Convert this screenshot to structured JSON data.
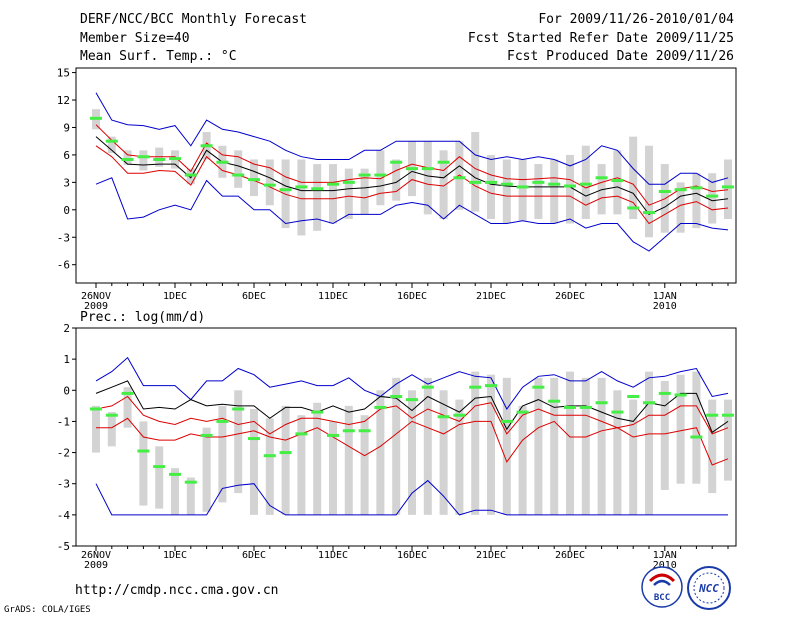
{
  "header": {
    "title": "DERF/NCC/BCC Monthly Forecast",
    "member_size": "Member Size=40",
    "variable": "Mean Surf. Temp.: °C",
    "forecast_range": "For 2009/11/26-2010/01/04",
    "started_refer": "Fcst Started Refer Date 2009/11/25",
    "produced": "Fcst Produced Date 2009/11/26"
  },
  "footer": {
    "url": "http://cmdp.ncc.cma.gov.cn",
    "credit": "GrADS: COLA/IGES"
  },
  "logos": {
    "bcc": "BCC",
    "ncc": "NCC"
  },
  "colors": {
    "box": "#d3d3d3",
    "median": "#44ee44",
    "mean": "#000000",
    "spread": "#dd0000",
    "extreme": "#0000cc"
  },
  "chart_data": [
    {
      "type": "box",
      "title": "Mean Surf. Temp.: °C",
      "xlabel": "",
      "ylabel": "°C",
      "ylim": [
        -8,
        15.5
      ],
      "yticks": [
        -6,
        -3,
        0,
        3,
        6,
        9,
        12,
        15
      ],
      "xticks": [
        {
          "day": 0,
          "label": "26NOV",
          "sub": "2009"
        },
        {
          "day": 5,
          "label": "1DEC"
        },
        {
          "day": 10,
          "label": "6DEC"
        },
        {
          "day": 15,
          "label": "11DEC"
        },
        {
          "day": 20,
          "label": "16DEC"
        },
        {
          "day": 25,
          "label": "21DEC"
        },
        {
          "day": 30,
          "label": "26DEC"
        },
        {
          "day": 36,
          "label": "1JAN",
          "sub": "2010"
        }
      ],
      "box_low": [
        8.8,
        6.2,
        4.9,
        4.3,
        4.7,
        4.5,
        2.8,
        5.5,
        3.5,
        2.4,
        1.5,
        0.5,
        -2.0,
        -2.8,
        -2.3,
        -1.5,
        -1.0,
        -0.5,
        0.5,
        1.0,
        1.5,
        -0.5,
        -1.0,
        0.0,
        -0.2,
        -1.0,
        -1.5,
        -1.2,
        -1.0,
        -1.5,
        -1.5,
        -1.0,
        -0.5,
        -0.5,
        -1.0,
        -3.0,
        -2.5,
        -2.5,
        -2.0,
        -1.5,
        -1.0
      ],
      "box_high": [
        11.0,
        8.0,
        6.5,
        6.5,
        6.8,
        6.5,
        4.5,
        8.5,
        7.0,
        6.5,
        5.5,
        5.5,
        5.5,
        5.5,
        5.0,
        5.0,
        4.5,
        4.5,
        6.5,
        5.5,
        7.5,
        7.5,
        6.5,
        7.5,
        8.5,
        6.0,
        5.5,
        5.5,
        5.0,
        5.5,
        6.0,
        7.0,
        5.0,
        6.5,
        8.0,
        7.0,
        5.0,
        3.0,
        4.0,
        4.0,
        5.5
      ],
      "median": [
        10.0,
        7.5,
        5.5,
        5.8,
        5.5,
        5.6,
        3.8,
        7.0,
        5.2,
        3.8,
        3.3,
        2.7,
        2.2,
        2.5,
        2.3,
        2.8,
        3.0,
        3.8,
        3.8,
        5.2,
        4.5,
        4.5,
        5.2,
        3.5,
        3.0,
        3.0,
        2.8,
        2.5,
        3.0,
        2.8,
        2.6,
        2.8,
        3.5,
        3.2,
        0.2,
        -0.3,
        2.0,
        2.2,
        2.4,
        1.5,
        2.5
      ],
      "mean": [
        8.0,
        6.5,
        5.0,
        4.9,
        5.0,
        5.0,
        3.5,
        6.5,
        5.2,
        4.8,
        4.2,
        3.5,
        2.6,
        2.1,
        2.1,
        2.1,
        2.3,
        2.4,
        2.6,
        3.0,
        4.2,
        3.7,
        3.5,
        4.8,
        3.5,
        2.8,
        2.6,
        2.5,
        2.5,
        2.5,
        2.5,
        1.5,
        2.2,
        2.5,
        1.8,
        -0.5,
        0.3,
        1.5,
        1.8,
        1.0,
        1.2
      ],
      "upper_spread": [
        9.3,
        7.6,
        6.0,
        5.8,
        5.8,
        5.8,
        4.2,
        7.3,
        6.0,
        5.8,
        5.0,
        4.6,
        3.6,
        3.0,
        3.0,
        3.0,
        3.3,
        3.5,
        3.4,
        4.3,
        5.0,
        4.6,
        4.3,
        5.8,
        4.5,
        3.8,
        3.4,
        3.3,
        3.4,
        3.5,
        3.3,
        2.4,
        3.0,
        3.5,
        2.8,
        0.5,
        1.2,
        2.3,
        2.6,
        2.0,
        2.2
      ],
      "lower_spread": [
        7.0,
        5.8,
        4.0,
        4.0,
        4.3,
        4.2,
        2.7,
        5.8,
        4.3,
        3.8,
        3.2,
        2.5,
        1.7,
        1.2,
        1.2,
        1.2,
        1.5,
        1.3,
        1.8,
        2.0,
        3.3,
        2.8,
        2.6,
        3.8,
        2.6,
        1.8,
        1.5,
        1.5,
        1.5,
        1.5,
        1.5,
        0.5,
        1.3,
        1.5,
        0.8,
        -1.5,
        -0.5,
        0.5,
        0.9,
        0.0,
        0.2
      ],
      "max": [
        12.8,
        9.8,
        9.3,
        9.2,
        8.8,
        9.2,
        7.0,
        9.8,
        8.8,
        8.5,
        8.0,
        7.5,
        6.5,
        5.8,
        5.5,
        5.5,
        5.5,
        6.5,
        6.5,
        7.5,
        7.5,
        7.5,
        7.5,
        7.5,
        6.0,
        5.5,
        5.8,
        5.5,
        5.8,
        5.5,
        4.8,
        5.5,
        7.0,
        6.5,
        4.5,
        2.8,
        2.8,
        4.0,
        4.0,
        3.0,
        3.5
      ],
      "min": [
        2.8,
        3.5,
        -1.0,
        -0.8,
        0.0,
        0.5,
        0.0,
        3.2,
        1.5,
        1.5,
        0.0,
        0.0,
        -1.5,
        -1.2,
        -1.0,
        -1.5,
        -0.5,
        -0.5,
        -0.5,
        0.5,
        0.8,
        0.5,
        -1.0,
        0.5,
        -0.5,
        -1.5,
        -1.5,
        -1.2,
        -1.5,
        -1.5,
        -1.0,
        -2.0,
        -1.5,
        -1.5,
        -3.5,
        -4.5,
        -3.0,
        -1.5,
        -1.5,
        -2.0,
        -2.2
      ]
    },
    {
      "type": "box",
      "title": "Prec.: log(mm/d)",
      "xlabel": "",
      "ylabel": "log(mm/d)",
      "ylim": [
        -5,
        2
      ],
      "yticks": [
        -5,
        -4,
        -3,
        -2,
        -1,
        0,
        1,
        2
      ],
      "xticks": [
        {
          "day": 0,
          "label": "26NOV",
          "sub": "2009"
        },
        {
          "day": 5,
          "label": "1DEC"
        },
        {
          "day": 10,
          "label": "6DEC"
        },
        {
          "day": 15,
          "label": "11DEC"
        },
        {
          "day": 20,
          "label": "16DEC"
        },
        {
          "day": 25,
          "label": "21DEC"
        },
        {
          "day": 30,
          "label": "26DEC"
        },
        {
          "day": 36,
          "label": "1JAN",
          "sub": "2010"
        }
      ],
      "box_low": [
        -2.0,
        -1.8,
        -1.2,
        -3.7,
        -3.8,
        -4.0,
        -4.0,
        -3.9,
        -3.6,
        -3.3,
        -4.0,
        -4.0,
        -4.0,
        -4.0,
        -4.0,
        -4.0,
        -4.0,
        -4.0,
        -4.0,
        -4.0,
        -4.0,
        -4.0,
        -4.0,
        -4.0,
        -4.0,
        -4.0,
        -4.0,
        -4.0,
        -4.0,
        -4.0,
        -4.0,
        -4.0,
        -4.0,
        -4.0,
        -4.0,
        -4.0,
        -3.2,
        -3.0,
        -3.0,
        -3.3,
        -2.9
      ],
      "box_high": [
        -0.5,
        -0.7,
        0.1,
        -1.0,
        -1.8,
        -2.5,
        -2.8,
        -1.2,
        -0.5,
        0.0,
        -0.6,
        -0.9,
        -0.5,
        -0.8,
        -0.4,
        -1.0,
        -0.5,
        -0.8,
        0.0,
        0.4,
        0.0,
        0.4,
        0.0,
        -0.3,
        0.6,
        0.5,
        0.4,
        -0.5,
        0.4,
        0.4,
        0.6,
        0.4,
        0.4,
        0.0,
        -0.3,
        0.6,
        0.3,
        0.5,
        0.6,
        -0.3,
        -0.3
      ],
      "median": [
        -0.6,
        -0.8,
        -0.1,
        -1.95,
        -2.45,
        -2.7,
        -2.95,
        -1.45,
        -1.0,
        -0.6,
        -1.55,
        -2.1,
        -2.0,
        -1.4,
        -0.7,
        -1.45,
        -1.3,
        -1.3,
        -0.55,
        -0.2,
        -0.3,
        0.1,
        -0.85,
        -0.8,
        0.1,
        0.15,
        -1.0,
        -0.7,
        0.1,
        -0.35,
        -0.55,
        -0.55,
        -0.4,
        -0.7,
        -0.2,
        -0.4,
        -0.1,
        -0.15,
        -1.5,
        -0.8,
        -0.8
      ],
      "mean": [
        -0.1,
        0.1,
        0.3,
        -0.6,
        -0.55,
        -0.6,
        -0.3,
        -0.5,
        -0.45,
        -0.5,
        -0.5,
        -0.9,
        -0.55,
        -0.55,
        -0.7,
        -0.5,
        -0.7,
        -0.6,
        -0.2,
        -0.25,
        -0.65,
        -0.2,
        -0.45,
        -0.7,
        -0.25,
        -0.2,
        -1.25,
        -0.5,
        -0.3,
        -0.55,
        -0.5,
        -0.5,
        -0.7,
        -0.9,
        -1.0,
        -0.4,
        -0.5,
        -0.1,
        -0.1,
        -1.35,
        -1.0
      ],
      "upper_spread": [
        -0.6,
        -0.5,
        -0.2,
        -0.8,
        -1.0,
        -1.1,
        -0.9,
        -1.0,
        -0.9,
        -1.1,
        -1.0,
        -1.4,
        -1.1,
        -0.9,
        -0.9,
        -1.0,
        -1.1,
        -1.0,
        -0.6,
        -0.5,
        -0.9,
        -0.6,
        -0.8,
        -1.0,
        -0.5,
        -0.4,
        -1.4,
        -0.8,
        -0.6,
        -0.8,
        -0.8,
        -0.8,
        -1.0,
        -1.2,
        -1.1,
        -0.8,
        -0.8,
        -0.5,
        -0.5,
        -1.4,
        -1.2
      ],
      "lower_spread": [
        -1.2,
        -1.2,
        -0.9,
        -1.5,
        -1.6,
        -1.6,
        -1.4,
        -1.5,
        -1.5,
        -1.4,
        -1.3,
        -1.5,
        -1.6,
        -1.4,
        -1.2,
        -1.5,
        -1.8,
        -2.1,
        -1.8,
        -1.4,
        -1.0,
        -1.2,
        -1.4,
        -1.1,
        -1.0,
        -1.0,
        -2.3,
        -1.6,
        -1.2,
        -1.0,
        -1.5,
        -1.5,
        -1.3,
        -1.2,
        -1.5,
        -1.4,
        -1.4,
        -1.3,
        -1.2,
        -2.4,
        -2.2
      ],
      "max": [
        0.3,
        0.6,
        1.05,
        0.15,
        0.15,
        0.15,
        -0.3,
        0.3,
        0.3,
        0.7,
        0.5,
        0.1,
        0.2,
        0.3,
        0.15,
        0.15,
        0.4,
        0.0,
        -0.2,
        0.2,
        0.5,
        0.2,
        0.4,
        0.6,
        0.45,
        0.4,
        -0.6,
        0.1,
        0.45,
        0.5,
        0.3,
        0.3,
        0.6,
        0.3,
        0.1,
        0.4,
        0.45,
        0.6,
        0.7,
        -0.2,
        -0.1
      ],
      "min": [
        -3.0,
        -4.0,
        -4.0,
        -4.0,
        -4.0,
        -4.0,
        -4.0,
        -4.0,
        -3.15,
        -3.05,
        -3.0,
        -3.7,
        -4.0,
        -4.0,
        -4.0,
        -4.0,
        -4.0,
        -4.0,
        -4.0,
        -4.0,
        -3.3,
        -2.9,
        -3.4,
        -4.0,
        -3.85,
        -3.85,
        -4.0,
        -4.0,
        -4.0,
        -4.0,
        -4.0,
        -4.0,
        -4.0,
        -4.0,
        -4.0,
        -4.0,
        -4.0,
        -4.0,
        -4.0,
        -4.0,
        -4.0
      ]
    }
  ]
}
